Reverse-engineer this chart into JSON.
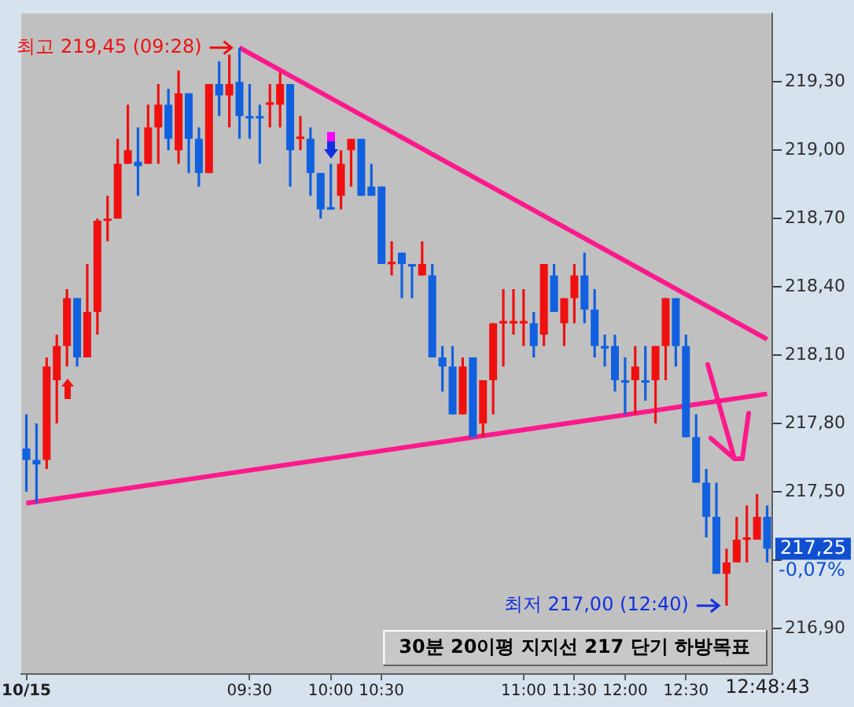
{
  "chart_data": {
    "type": "candlestick",
    "categories": [
      "10/15",
      null,
      null,
      null,
      null,
      null,
      null,
      null,
      null,
      null,
      null,
      null,
      null,
      null,
      null,
      null,
      null,
      null,
      null,
      null,
      null,
      null,
      "09:30",
      null,
      null,
      null,
      null,
      null,
      null,
      null,
      "10:00",
      null,
      null,
      null,
      null,
      "10:30",
      null,
      null,
      null,
      null,
      null,
      null,
      null,
      null,
      null,
      null,
      null,
      null,
      null,
      "11:00",
      null,
      null,
      null,
      null,
      "11:30",
      null,
      null,
      null,
      null,
      "12:00",
      null,
      null,
      null,
      null,
      null,
      "12:30",
      null,
      null,
      null,
      null,
      null,
      null,
      null,
      null
    ],
    "ohlc": [
      [
        217.69,
        217.84,
        217.5,
        217.64
      ],
      [
        217.64,
        217.8,
        217.45,
        217.62
      ],
      [
        217.64,
        218.09,
        217.6,
        218.05
      ],
      [
        217.99,
        218.19,
        217.8,
        218.14
      ],
      [
        218.14,
        218.39,
        218.05,
        218.35
      ],
      [
        218.35,
        218.35,
        218.05,
        218.09
      ],
      [
        218.09,
        218.5,
        218.09,
        218.29
      ],
      [
        218.29,
        218.7,
        218.19,
        218.69
      ],
      [
        218.69,
        218.8,
        218.6,
        218.7
      ],
      [
        218.7,
        219.05,
        218.7,
        218.94
      ],
      [
        218.94,
        219.2,
        218.94,
        219.0
      ],
      [
        218.95,
        219.1,
        218.8,
        218.93
      ],
      [
        218.94,
        219.2,
        218.94,
        219.1
      ],
      [
        219.1,
        219.29,
        218.94,
        219.2
      ],
      [
        219.2,
        219.27,
        219.0,
        219.05
      ],
      [
        219.0,
        219.35,
        218.94,
        219.25
      ],
      [
        219.25,
        219.25,
        218.9,
        219.05
      ],
      [
        219.05,
        219.1,
        218.84,
        218.9
      ],
      [
        218.9,
        219.29,
        218.9,
        219.29
      ],
      [
        219.29,
        219.39,
        219.15,
        219.24
      ],
      [
        219.24,
        219.42,
        219.1,
        219.29
      ],
      [
        219.3,
        219.45,
        219.05,
        219.15
      ],
      [
        219.15,
        219.29,
        219.05,
        219.14
      ],
      [
        219.15,
        219.2,
        218.94,
        219.14
      ],
      [
        219.2,
        219.29,
        219.1,
        219.21
      ],
      [
        219.2,
        219.34,
        219.1,
        219.29
      ],
      [
        219.29,
        219.29,
        218.84,
        219.0
      ],
      [
        219.05,
        219.15,
        219.0,
        219.06
      ],
      [
        219.05,
        219.1,
        218.8,
        218.9
      ],
      [
        218.9,
        218.9,
        218.7,
        218.74
      ],
      [
        218.75,
        218.94,
        218.74,
        218.74
      ],
      [
        218.8,
        219.0,
        218.74,
        218.94
      ],
      [
        219.0,
        219.05,
        218.84,
        219.05
      ],
      [
        219.05,
        219.05,
        218.8,
        218.8
      ],
      [
        218.84,
        218.94,
        218.8,
        218.8
      ],
      [
        218.84,
        218.84,
        218.5,
        218.5
      ],
      [
        218.5,
        218.6,
        218.45,
        218.51
      ],
      [
        218.55,
        218.55,
        218.35,
        218.5
      ],
      [
        218.5,
        218.5,
        218.35,
        218.49
      ],
      [
        218.45,
        218.6,
        218.45,
        218.5
      ],
      [
        218.45,
        218.5,
        218.09,
        218.09
      ],
      [
        218.09,
        218.14,
        217.94,
        218.05
      ],
      [
        218.05,
        218.14,
        217.84,
        217.84
      ],
      [
        217.84,
        218.09,
        217.84,
        218.05
      ],
      [
        218.09,
        218.09,
        217.74,
        217.74
      ],
      [
        217.8,
        217.99,
        217.74,
        217.99
      ],
      [
        217.99,
        218.24,
        217.84,
        218.24
      ],
      [
        218.24,
        218.39,
        218.05,
        218.25
      ],
      [
        218.24,
        218.39,
        218.19,
        218.25
      ],
      [
        218.24,
        218.39,
        218.14,
        218.25
      ],
      [
        218.24,
        218.29,
        218.09,
        218.14
      ],
      [
        218.19,
        218.5,
        218.14,
        218.5
      ],
      [
        218.45,
        218.5,
        218.29,
        218.29
      ],
      [
        218.24,
        218.35,
        218.14,
        218.35
      ],
      [
        218.35,
        218.5,
        218.24,
        218.45
      ],
      [
        218.45,
        218.55,
        218.24,
        218.3
      ],
      [
        218.3,
        218.39,
        218.09,
        218.14
      ],
      [
        218.14,
        218.19,
        218.05,
        218.13
      ],
      [
        218.14,
        218.19,
        217.94,
        217.99
      ],
      [
        217.99,
        218.09,
        217.84,
        217.98
      ],
      [
        217.99,
        218.14,
        217.84,
        218.05
      ],
      [
        217.99,
        218.14,
        217.9,
        217.98
      ],
      [
        217.99,
        218.14,
        217.8,
        218.14
      ],
      [
        218.14,
        218.35,
        217.99,
        218.35
      ],
      [
        218.35,
        218.35,
        218.05,
        218.14
      ],
      [
        218.14,
        218.19,
        217.74,
        217.74
      ],
      [
        217.74,
        217.84,
        217.54,
        217.54
      ],
      [
        217.54,
        217.6,
        217.3,
        217.39
      ],
      [
        217.39,
        217.54,
        217.14,
        217.14
      ],
      [
        217.14,
        217.25,
        217.0,
        217.19
      ],
      [
        217.19,
        217.39,
        217.19,
        217.29
      ],
      [
        217.29,
        217.44,
        217.19,
        217.3
      ],
      [
        217.29,
        217.49,
        217.29,
        217.39
      ],
      [
        217.39,
        217.44,
        217.19,
        217.25
      ]
    ],
    "colors": [
      "#1060e0",
      "#1060e0",
      "#f01010",
      "#f01010",
      "#f01010",
      "#1060e0",
      "#f01010",
      "#f01010",
      "#f01010",
      "#f01010",
      "#f01010",
      "#1060e0",
      "#f01010",
      "#f01010",
      "#1060e0",
      "#f01010",
      "#1060e0",
      "#1060e0",
      "#f01010",
      "#1060e0",
      "#f01010",
      "#1060e0",
      "#1060e0",
      "#1060e0",
      "#f01010",
      "#f01010",
      "#1060e0",
      "#f01010",
      "#1060e0",
      "#1060e0",
      "#1060e0",
      "#f01010",
      "#f01010",
      "#1060e0",
      "#1060e0",
      "#1060e0",
      "#f01010",
      "#1060e0",
      "#1060e0",
      "#f01010",
      "#1060e0",
      "#1060e0",
      "#1060e0",
      "#f01010",
      "#1060e0",
      "#f01010",
      "#f01010",
      "#f01010",
      "#f01010",
      "#f01010",
      "#1060e0",
      "#f01010",
      "#1060e0",
      "#f01010",
      "#f01010",
      "#1060e0",
      "#1060e0",
      "#1060e0",
      "#1060e0",
      "#1060e0",
      "#f01010",
      "#1060e0",
      "#f01010",
      "#f01010",
      "#1060e0",
      "#1060e0",
      "#1060e0",
      "#1060e0",
      "#1060e0",
      "#f01010",
      "#f01010",
      "#f01010",
      "#f01010",
      "#1060e0"
    ],
    "series": [
      {
        "type": "line",
        "color": "#ff1a8c",
        "values": [
          null,
          null,
          null,
          null,
          null,
          null,
          null,
          null,
          null,
          null,
          null,
          null,
          null,
          null,
          null,
          null,
          null,
          null,
          null,
          null,
          null,
          219.45,
          null,
          null,
          null,
          null,
          null,
          null,
          null,
          null,
          null,
          null,
          null,
          null,
          null,
          null,
          null,
          null,
          null,
          null,
          null,
          null,
          null,
          null,
          null,
          null,
          null,
          null,
          null,
          null,
          null,
          null,
          null,
          null,
          null,
          null,
          null,
          null,
          null,
          null,
          null,
          null,
          null,
          null,
          null,
          null,
          null,
          null,
          null,
          null,
          null,
          null,
          null,
          218.17
        ]
      },
      {
        "type": "line",
        "color": "#ff1a8c",
        "values": [
          217.45,
          null,
          null,
          null,
          null,
          null,
          null,
          null,
          null,
          null,
          null,
          null,
          null,
          null,
          null,
          null,
          null,
          null,
          null,
          null,
          null,
          null,
          null,
          null,
          null,
          null,
          null,
          null,
          null,
          null,
          null,
          null,
          null,
          null,
          null,
          null,
          null,
          null,
          null,
          null,
          null,
          null,
          null,
          null,
          null,
          null,
          null,
          null,
          null,
          null,
          null,
          null,
          null,
          null,
          null,
          null,
          null,
          null,
          null,
          null,
          null,
          null,
          null,
          null,
          null,
          null,
          null,
          null,
          null,
          null,
          null,
          null,
          null,
          217.93
        ]
      }
    ],
    "ylim": [
      216.7,
      219.6
    ],
    "yticks": [
      {
        "value": 216.9,
        "label": "216,90"
      },
      {
        "value": 217.2,
        "label": null
      },
      {
        "value": 217.5,
        "label": "217,50"
      },
      {
        "value": 217.8,
        "label": "217,80"
      },
      {
        "value": 218.1,
        "label": "218,10"
      },
      {
        "value": 218.4,
        "label": "218,40"
      },
      {
        "value": 218.7,
        "label": "218,70"
      },
      {
        "value": 219.0,
        "label": "219,00"
      },
      {
        "value": 219.3,
        "label": "219,30"
      }
    ],
    "annotations": [
      "최고 219,45 (09:28)",
      "최저 217,00 (12:40)",
      "217,25",
      "30분 20이평 지지선 217 단기 하방목표",
      "-0,07%",
      "12:48:43"
    ],
    "grid": false,
    "legend": false
  }
}
